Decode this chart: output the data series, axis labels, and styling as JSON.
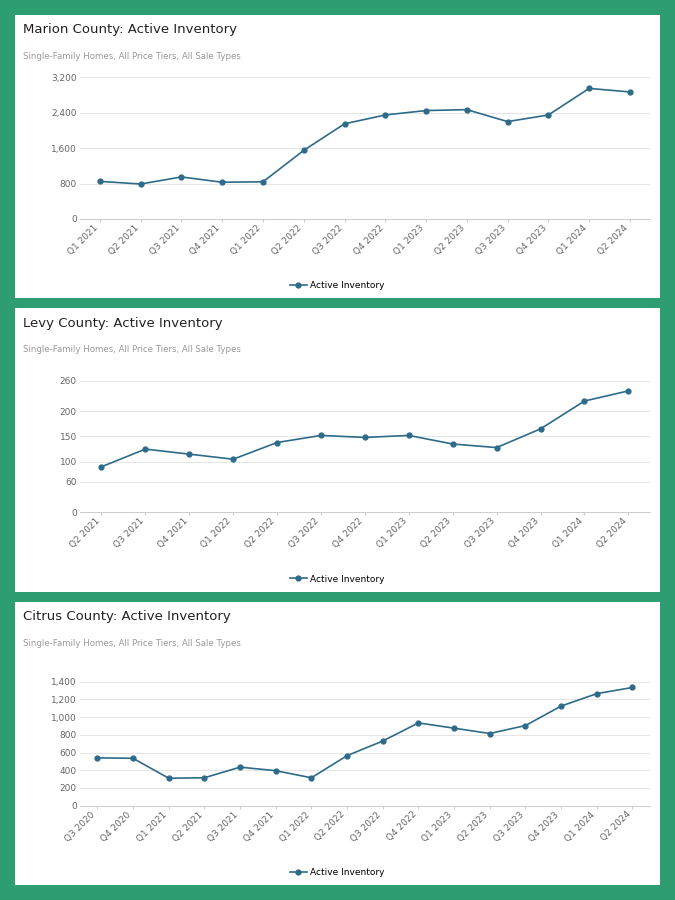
{
  "background_color": "#2e9e72",
  "panel_bg": "#ffffff",
  "line_color": "#2e6b8a",
  "marker_color": "#2e6b8a",
  "charts": [
    {
      "title": "Marion County: Active Inventory",
      "subtitle": "Single-Family Homes, All Price Tiers, All Sale Types",
      "labels": [
        "Q1 2021",
        "Q2 2021",
        "Q3 2021",
        "Q4 2021",
        "Q1 2022",
        "Q2 2022",
        "Q3 2022",
        "Q4 2022",
        "Q1 2023",
        "Q2 2023",
        "Q3 2023",
        "Q4 2023",
        "Q1 2024",
        "Q2 2024"
      ],
      "values": [
        850,
        790,
        950,
        830,
        840,
        1550,
        2150,
        2350,
        2450,
        2470,
        2200,
        2350,
        2950,
        2870
      ],
      "ylim": [
        0,
        3200
      ],
      "yticks": [
        0,
        800,
        1600,
        2400,
        3200
      ],
      "ytick_labels": [
        "0",
        "800",
        "1,600",
        "2,400",
        "3,200"
      ]
    },
    {
      "title": "Levy County: Active Inventory",
      "subtitle": "Single-Family Homes, All Price Tiers, All Sale Types",
      "labels": [
        "Q2 2021",
        "Q3 2021",
        "Q4 2021",
        "Q1 2022",
        "Q2 2022",
        "Q3 2022",
        "Q4 2022",
        "Q1 2023",
        "Q2 2023",
        "Q3 2023",
        "Q4 2023",
        "Q1 2024",
        "Q2 2024"
      ],
      "values": [
        90,
        125,
        115,
        105,
        138,
        152,
        148,
        152,
        135,
        128,
        165,
        220,
        240
      ],
      "ylim": [
        0,
        280
      ],
      "yticks": [
        0,
        60,
        100,
        150,
        200,
        260
      ],
      "ytick_labels": [
        "0",
        "60",
        "100",
        "150",
        "200",
        "260"
      ]
    },
    {
      "title": "Citrus County: Active Inventory",
      "subtitle": "Single-Family Homes, All Price Tiers, All Sale Types",
      "labels": [
        "Q3 2020",
        "Q4 2020",
        "Q1 2021",
        "Q2 2021",
        "Q3 2021",
        "Q4 2021",
        "Q1 2022",
        "Q2 2022",
        "Q3 2022",
        "Q4 2022",
        "Q1 2023",
        "Q2 2023",
        "Q3 2023",
        "Q4 2023",
        "Q1 2024",
        "Q2 2024"
      ],
      "values": [
        540,
        535,
        310,
        315,
        435,
        395,
        315,
        565,
        730,
        935,
        875,
        815,
        905,
        1125,
        1265,
        1335
      ],
      "ylim": [
        0,
        1600
      ],
      "yticks": [
        0,
        200,
        400,
        600,
        800,
        1000,
        1200,
        1400
      ],
      "ytick_labels": [
        "0",
        "200",
        "400",
        "600",
        "800",
        "1,000",
        "1,200",
        "1,400"
      ]
    }
  ],
  "title_fontsize": 9.5,
  "subtitle_fontsize": 6.2,
  "tick_fontsize": 6.5,
  "legend_fontsize": 6.5
}
